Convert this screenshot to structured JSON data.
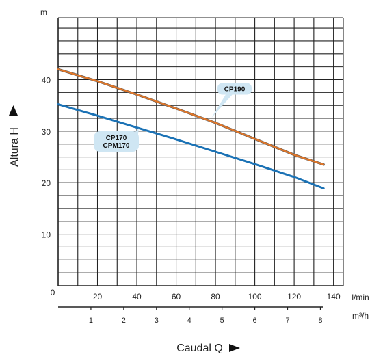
{
  "chart_data": {
    "type": "line",
    "xlabel": "Caudal  Q",
    "ylabel": "Altura  H",
    "x_unit": "l/min",
    "x2_unit": "m³/h",
    "y_unit": "m",
    "xlim": [
      0,
      145
    ],
    "ylim": [
      0,
      52
    ],
    "x_ticks": [
      "20",
      "40",
      "60",
      "80",
      "100",
      "120",
      "140"
    ],
    "x2_ticks": [
      "1",
      "2",
      "3",
      "4",
      "5",
      "6",
      "7",
      "8"
    ],
    "x2_tick_values": [
      1,
      2,
      3,
      4,
      5,
      6,
      7,
      8
    ],
    "y_ticks": [
      "10",
      "20",
      "30",
      "40"
    ],
    "origin_label": "0",
    "grid": true,
    "series": [
      {
        "name": "CP190",
        "color": "#e0772a",
        "x": [
          0,
          20,
          40,
          60,
          80,
          100,
          120,
          135
        ],
        "y": [
          42.0,
          39.7,
          37.1,
          34.4,
          31.6,
          28.5,
          25.4,
          23.5
        ]
      },
      {
        "name": "CP170 CPM170",
        "color": "#1b72b5",
        "x": [
          0,
          20,
          40,
          60,
          80,
          100,
          120,
          135
        ],
        "y": [
          35.2,
          33.0,
          30.7,
          28.4,
          26.0,
          23.6,
          21.1,
          18.9
        ]
      }
    ],
    "callouts": [
      {
        "lines": [
          "CP190"
        ],
        "series": "CP190"
      },
      {
        "lines": [
          "CP170",
          "CPM170"
        ],
        "series": "CP170 CPM170"
      }
    ]
  }
}
